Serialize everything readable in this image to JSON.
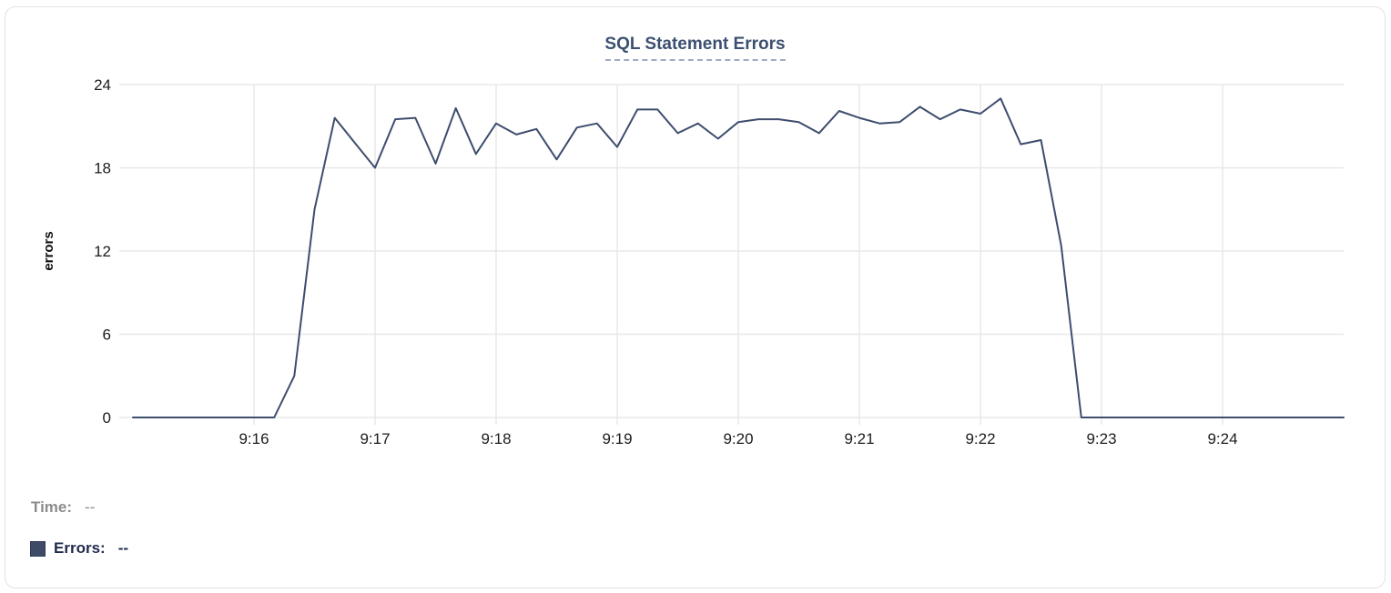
{
  "chart_data": {
    "type": "line",
    "title": "SQL Statement Errors",
    "xlabel": "",
    "ylabel": "errors",
    "ylim": [
      0,
      24
    ],
    "yticks": [
      0,
      6,
      12,
      18,
      24
    ],
    "x_start": "9:15:00",
    "x_end": "9:25:00",
    "point_interval_seconds": 10,
    "x_tick_labels": [
      "9:16",
      "9:17",
      "9:18",
      "9:19",
      "9:20",
      "9:21",
      "9:22",
      "9:23",
      "9:24"
    ],
    "x_tick_offsets_seconds": [
      60,
      120,
      180,
      240,
      300,
      360,
      420,
      480,
      540
    ],
    "grid": true,
    "legend_position": "below",
    "series": [
      {
        "name": "Errors",
        "color": "#3e4d6e",
        "values": [
          0,
          0,
          0,
          0,
          0,
          0,
          0,
          0,
          3,
          15,
          21.6,
          19.8,
          18,
          21.5,
          21.6,
          18.3,
          22.3,
          19,
          21.2,
          20.4,
          20.8,
          18.6,
          20.9,
          21.2,
          19.5,
          22.2,
          22.2,
          20.5,
          21.2,
          20.1,
          21.3,
          21.5,
          21.5,
          21.3,
          20.5,
          22.1,
          21.6,
          21.2,
          21.3,
          22.4,
          21.5,
          22.2,
          21.9,
          23,
          19.7,
          20,
          12.4,
          0,
          0,
          0,
          0,
          0,
          0,
          0,
          0,
          0,
          0,
          0,
          0,
          0,
          0
        ]
      }
    ]
  },
  "footer": {
    "time_label": "Time:",
    "time_value": "--",
    "errors_label": "Errors:",
    "errors_value": "--",
    "swatch_color": "#3e4a66"
  },
  "colors": {
    "title": "#3c5070",
    "title_underline": "#9fabc3",
    "line": "#3e4d6e",
    "grid": "#e8e8e8",
    "axis_text": "#1c1c1c",
    "y_axis_title": "#111111",
    "time_label": "#8c8c8c",
    "time_value": "#8c8c8c",
    "errors_label": "#1e2a4e",
    "card_border": "#e2e2e2"
  }
}
